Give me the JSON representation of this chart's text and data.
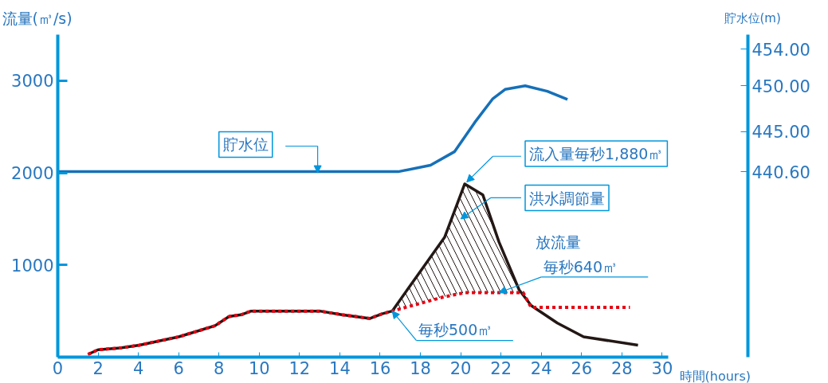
{
  "chart_data": {
    "type": "line",
    "xlabel": "時間(hours)",
    "ylabel": "流量(㎥/s)",
    "y2label": "貯水位(m)",
    "xlim": [
      0,
      30.3
    ],
    "xticks": [
      0,
      2,
      4,
      6,
      8,
      10,
      12,
      14,
      16,
      18,
      20,
      22,
      24,
      26,
      28,
      30
    ],
    "ylim": [
      0,
      3500
    ],
    "yticks": [
      1000,
      2000,
      3000
    ],
    "y2lim": [
      420.3,
      455.6
    ],
    "y2ticks": [
      {
        "value": 440.6,
        "label": "440.60"
      },
      {
        "value": 445,
        "label": "445.00"
      },
      {
        "value": 450,
        "label": "450.00"
      },
      {
        "value": 454,
        "label": "454.00"
      }
    ],
    "grid": false,
    "series": [
      {
        "type": "area",
        "color": "#231815",
        "x": [
          16.6,
          19.2,
          20.2,
          21.1,
          21.9,
          22.9,
          23.1,
          20.2,
          19.1,
          16.6
        ],
        "values": [
          500,
          1300,
          1880,
          1760,
          1250,
          730,
          700,
          700,
          650,
          500
        ]
      },
      {
        "axis": "y2",
        "color": "#1670b8",
        "x": [
          0,
          16.9,
          18.5,
          19.7,
          20.7,
          21.6,
          22.2,
          23.2,
          24.3,
          25.3
        ],
        "values": [
          440.6,
          440.6,
          441.3,
          442.8,
          446.0,
          448.6,
          449.6,
          450.0,
          449.4,
          448.5
        ]
      },
      {
        "color": "#231815",
        "x": [
          1.5,
          2.0,
          3.1,
          4.05,
          6.0,
          7.8,
          8.5,
          9.1,
          9.6,
          13.0,
          14.1,
          15.5,
          16.1,
          16.6,
          19.2,
          20.2,
          21.1,
          21.9,
          22.9,
          23.5,
          24.8,
          26.1,
          28.8
        ],
        "values": [
          30,
          80,
          100,
          130,
          220,
          340,
          440,
          460,
          500,
          500,
          460,
          420,
          470,
          500,
          1300,
          1880,
          1760,
          1250,
          730,
          560,
          370,
          220,
          130
        ]
      },
      {
        "color": "#e60012",
        "line_style": "dotted",
        "x": [
          1.5,
          2.0,
          3.1,
          4.05,
          6.0,
          7.8,
          8.5,
          9.1,
          9.6,
          13.0,
          14.1,
          15.5,
          16.1,
          16.6,
          19.1,
          20.2,
          23.1,
          23.5,
          28.4
        ],
        "values": [
          30,
          80,
          100,
          130,
          220,
          340,
          440,
          460,
          500,
          500,
          460,
          420,
          470,
          500,
          650,
          700,
          700,
          540,
          540
        ]
      }
    ],
    "annotations": [
      "流入量毎秒1,880㎥",
      "洪水調節量",
      "放流量",
      {
        "text": "毎秒640㎥",
        "x": 21.9,
        "y": 700
      },
      {
        "text": "毎秒500㎥",
        "x": 16.6,
        "y": 500
      },
      "貯水位"
    ]
  }
}
